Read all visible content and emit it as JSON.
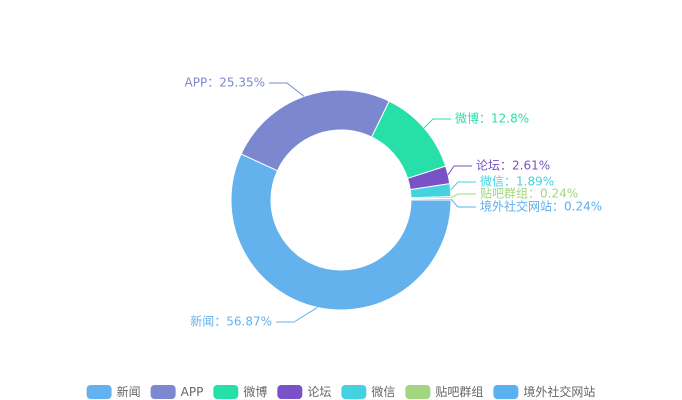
{
  "chart_data": {
    "type": "pie",
    "categories": [
      "新闻",
      "APP",
      "微博",
      "论坛",
      "微信",
      "贴吧群组",
      "境外社交网站"
    ],
    "values": [
      56.87,
      25.35,
      12.8,
      2.61,
      1.89,
      0.24,
      0.24
    ],
    "value_labels": [
      "新闻：56.87%",
      "APP：25.35%",
      "微博：12.8%",
      "论坛：2.61%",
      "微信：1.89%",
      "贴吧群组：0.24%",
      "境外社交网站：0.24%"
    ],
    "colors": [
      "#63b2ee",
      "#7b88d0",
      "#27e0a9",
      "#7a52c8",
      "#45d2e0",
      "#a3d680",
      "#5bb0f0"
    ],
    "legend": "bottom"
  }
}
